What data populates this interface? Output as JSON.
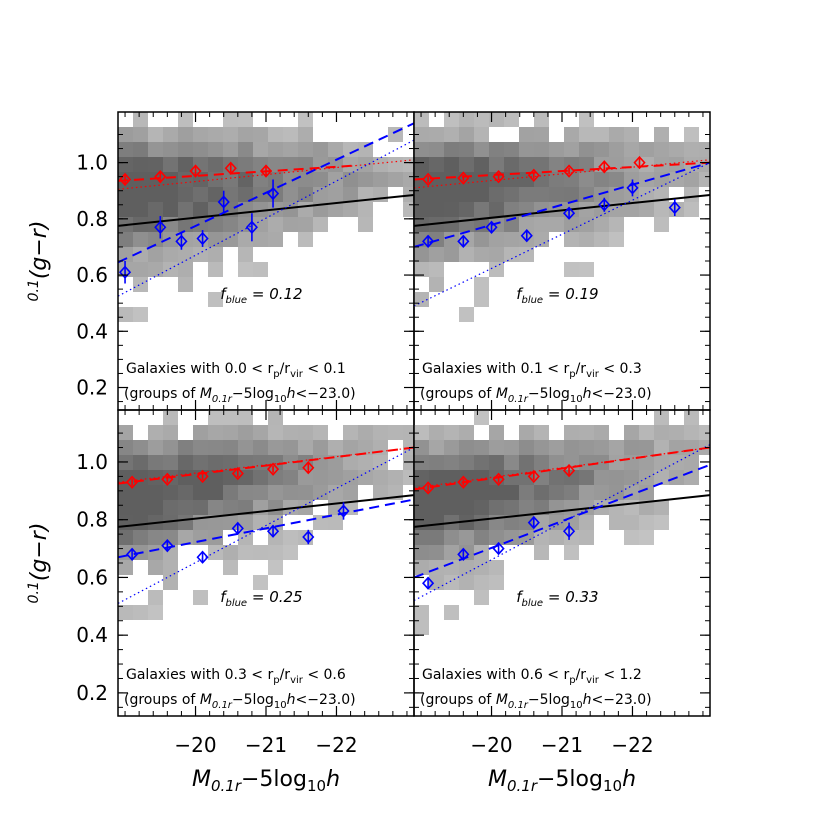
{
  "chart_data": {
    "type": "scatter",
    "layout": "2x2 panels sharing axes",
    "x_axis": {
      "label_parts": {
        "sym": "M",
        "sub": "0.1r",
        "mid": "−5log",
        "sub2": "10",
        "end": "h"
      },
      "xlim": [
        -18.9,
        -23.1
      ],
      "ticks": [
        -20,
        -21,
        -22
      ],
      "tick_labels": [
        "−20",
        "−21",
        "−22"
      ]
    },
    "y_axis": {
      "label_parts": {
        "sup": "0.1",
        "main": "(g−r)"
      },
      "ylim": [
        0.12,
        1.18
      ],
      "ticks": [
        0.2,
        0.4,
        0.6,
        0.8,
        1.0
      ],
      "tick_labels": [
        "0.2",
        "0.4",
        "0.6",
        "0.8",
        "1.0"
      ]
    },
    "grid": false,
    "reference_line": {
      "color": "#000000",
      "x": [
        -18.9,
        -23.1
      ],
      "y": [
        0.775,
        0.885
      ]
    },
    "red_color": "#ff0000",
    "blue_color": "#0000ff",
    "panels": [
      {
        "range_text": "Galaxies with 0.0 < r_p/r_vir < 0.1",
        "label_parts": {
          "pre": "Galaxies with 0.0 < r",
          "p": "p",
          "mid": "/r",
          "vir": "vir",
          "post": " < 0.1"
        },
        "group_parts": {
          "pre": "(groups of ",
          "sym": "M",
          "sub": "0.1r",
          "mid": "−5log",
          "sub2": "10",
          "h": "h",
          "post": "<−23.0)"
        },
        "fblue_label": "f",
        "fblue_sub": "blue",
        "fblue_value": "= 0.12",
        "red_points": {
          "x": [
            -19.0,
            -19.5,
            -20.0,
            -20.5,
            -21.0
          ],
          "y": [
            0.94,
            0.95,
            0.97,
            0.98,
            0.97
          ],
          "err": [
            0.015,
            0.015,
            0.015,
            0.015,
            0.015
          ]
        },
        "blue_points": {
          "x": [
            -19.0,
            -19.5,
            -19.8,
            -20.1,
            -20.4,
            -20.8,
            -21.1
          ],
          "y": [
            0.61,
            0.77,
            0.72,
            0.73,
            0.86,
            0.77,
            0.89
          ],
          "err": [
            0.04,
            0.04,
            0.03,
            0.03,
            0.04,
            0.05,
            0.05
          ]
        },
        "red_fit": [
          [
            -18.9,
            0.935
          ],
          [
            -22.3,
            0.99
          ]
        ],
        "blue_fit": [
          [
            -18.9,
            0.645
          ],
          [
            -23.1,
            1.14
          ]
        ],
        "red_dotted": [
          [
            -18.9,
            0.905
          ],
          [
            -23.1,
            1.01
          ]
        ],
        "blue_dotted": [
          [
            -18.9,
            0.525
          ],
          [
            -23.1,
            1.08
          ]
        ]
      },
      {
        "range_text": "Galaxies with 0.1 < r_p/r_vir < 0.3",
        "label_parts": {
          "pre": "Galaxies with 0.1 < r",
          "p": "p",
          "mid": "/r",
          "vir": "vir",
          "post": " < 0.3"
        },
        "group_parts": {
          "pre": "(groups of ",
          "sym": "M",
          "sub": "0.1r",
          "mid": "−5log",
          "sub2": "10",
          "h": "h",
          "post": "<−23.0)"
        },
        "fblue_label": "f",
        "fblue_sub": "blue",
        "fblue_value": "= 0.19",
        "red_points": {
          "x": [
            -19.1,
            -19.6,
            -20.1,
            -20.6,
            -21.1,
            -21.6,
            -22.1
          ],
          "y": [
            0.94,
            0.945,
            0.95,
            0.955,
            0.97,
            0.985,
            1.0
          ],
          "err": [
            0.012,
            0.012,
            0.012,
            0.012,
            0.012,
            0.015,
            0.015
          ]
        },
        "blue_points": {
          "x": [
            -19.1,
            -19.6,
            -20.0,
            -20.5,
            -21.1,
            -21.6,
            -22.0,
            -22.6
          ],
          "y": [
            0.72,
            0.72,
            0.77,
            0.74,
            0.82,
            0.85,
            0.91,
            0.84
          ],
          "err": [
            0.015,
            0.015,
            0.015,
            0.02,
            0.02,
            0.025,
            0.03,
            0.03
          ]
        },
        "red_fit": [
          [
            -18.9,
            0.94
          ],
          [
            -23.1,
            1.0
          ]
        ],
        "blue_fit": [
          [
            -18.9,
            0.7
          ],
          [
            -23.1,
            1.0
          ]
        ],
        "red_dotted": [
          [
            -18.9,
            0.91
          ],
          [
            -23.1,
            1.01
          ]
        ],
        "blue_dotted": [
          [
            -18.9,
            0.49
          ],
          [
            -23.1,
            1.0
          ]
        ]
      },
      {
        "range_text": "Galaxies with 0.3 < r_p/r_vir < 0.6",
        "label_parts": {
          "pre": "Galaxies with 0.3 < r",
          "p": "p",
          "mid": "/r",
          "vir": "vir",
          "post": " < 0.6"
        },
        "group_parts": {
          "pre": "(groups of ",
          "sym": "M",
          "sub": "0.1r",
          "mid": "−5log",
          "sub2": "10",
          "h": "h",
          "post": "<−23.0)"
        },
        "fblue_label": "f",
        "fblue_sub": "blue",
        "fblue_value": "= 0.25",
        "red_points": {
          "x": [
            -19.1,
            -19.6,
            -20.1,
            -20.6,
            -21.1,
            -21.6
          ],
          "y": [
            0.93,
            0.94,
            0.95,
            0.96,
            0.975,
            0.98
          ],
          "err": [
            0.012,
            0.012,
            0.012,
            0.012,
            0.012,
            0.015
          ]
        },
        "blue_points": {
          "x": [
            -19.1,
            -19.6,
            -20.1,
            -20.6,
            -21.1,
            -21.6,
            -22.1
          ],
          "y": [
            0.68,
            0.71,
            0.67,
            0.77,
            0.76,
            0.74,
            0.83
          ],
          "err": [
            0.015,
            0.015,
            0.02,
            0.02,
            0.02,
            0.025,
            0.03
          ]
        },
        "red_fit": [
          [
            -18.9,
            0.925
          ],
          [
            -23.1,
            1.05
          ]
        ],
        "blue_fit": [
          [
            -18.9,
            0.67
          ],
          [
            -23.1,
            0.87
          ]
        ],
        "red_dotted": [
          [
            -18.9,
            0.93
          ],
          [
            -23.1,
            1.05
          ]
        ],
        "blue_dotted": [
          [
            -18.9,
            0.51
          ],
          [
            -23.1,
            1.05
          ]
        ]
      },
      {
        "range_text": "Galaxies with 0.6 < r_p/r_vir < 1.2",
        "label_parts": {
          "pre": "Galaxies with 0.6 < r",
          "p": "p",
          "mid": "/r",
          "vir": "vir",
          "post": " < 1.2"
        },
        "group_parts": {
          "pre": "(groups of ",
          "sym": "M",
          "sub": "0.1r",
          "mid": "−5log",
          "sub2": "10",
          "h": "h",
          "post": "<−23.0)"
        },
        "fblue_label": "f",
        "fblue_sub": "blue",
        "fblue_value": "= 0.33",
        "red_points": {
          "x": [
            -19.1,
            -19.6,
            -20.1,
            -20.6,
            -21.1
          ],
          "y": [
            0.91,
            0.93,
            0.94,
            0.95,
            0.97
          ],
          "err": [
            0.012,
            0.012,
            0.012,
            0.012,
            0.015
          ]
        },
        "blue_points": {
          "x": [
            -19.1,
            -19.6,
            -20.1,
            -20.6,
            -21.1
          ],
          "y": [
            0.58,
            0.68,
            0.7,
            0.79,
            0.76
          ],
          "err": [
            0.02,
            0.02,
            0.02,
            0.02,
            0.03
          ]
        },
        "red_fit": [
          [
            -18.9,
            0.905
          ],
          [
            -23.1,
            1.05
          ]
        ],
        "blue_fit": [
          [
            -18.9,
            0.6
          ],
          [
            -23.1,
            0.99
          ]
        ],
        "red_dotted": [
          [
            -18.9,
            0.91
          ],
          [
            -23.1,
            1.05
          ]
        ],
        "blue_dotted": [
          [
            -18.9,
            0.52
          ],
          [
            -23.1,
            1.06
          ]
        ]
      }
    ]
  }
}
